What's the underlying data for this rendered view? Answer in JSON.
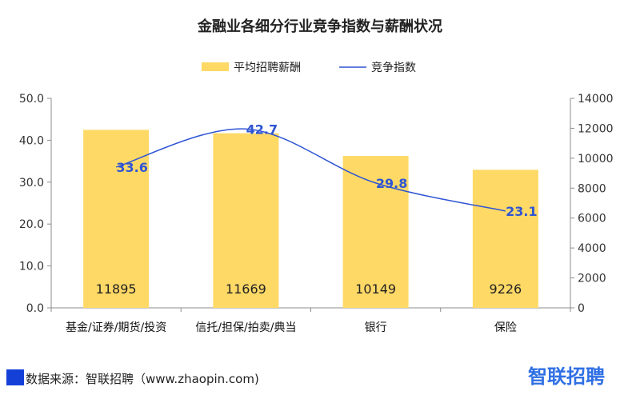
{
  "chart_data": {
    "type": "bar",
    "title": "金融业各细分行业竞争指数与薪酬状况",
    "categories": [
      "基金/证券/期货/投资",
      "信托/担保/拍卖/典当",
      "银行",
      "保险"
    ],
    "series": [
      {
        "name": "平均招聘薪酬",
        "type": "bar",
        "axis": "right",
        "values": [
          11895,
          11669,
          10149,
          9226
        ]
      },
      {
        "name": "竞争指数",
        "type": "line",
        "axis": "left",
        "values": [
          33.6,
          42.7,
          29.8,
          23.1
        ]
      }
    ],
    "left_axis": {
      "ylim": [
        0,
        50
      ],
      "ticks": [
        "0.0",
        "10.0",
        "20.0",
        "30.0",
        "40.0",
        "50.0"
      ]
    },
    "right_axis": {
      "ylim": [
        0,
        14000
      ],
      "ticks": [
        "0",
        "2000",
        "4000",
        "6000",
        "8000",
        "10000",
        "12000",
        "14000"
      ]
    },
    "legend_position": "top-center",
    "grid": false,
    "colors": {
      "bar": "#ffd966",
      "line": "#2f55d4",
      "line_label": "#2f55d4"
    }
  },
  "footer": {
    "source": "数据来源：智联招聘（www.zhaopin.com)",
    "brand": "智联招聘",
    "accent": "#1540d8"
  }
}
